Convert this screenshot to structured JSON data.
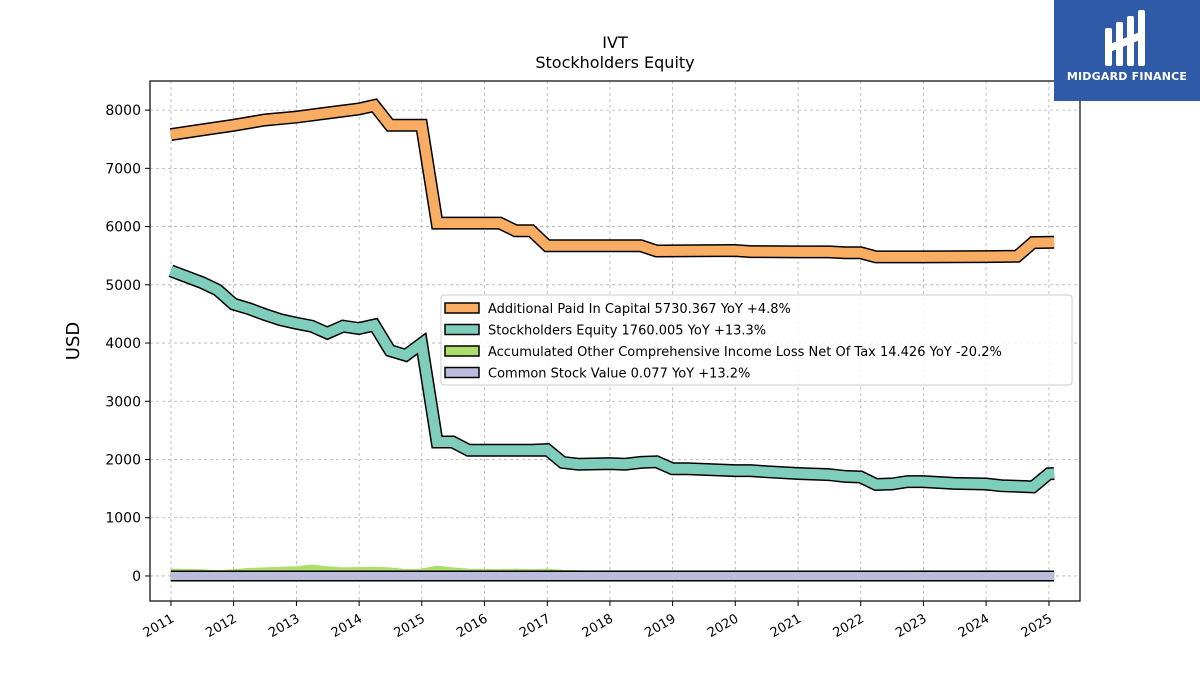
{
  "colors": {
    "apic": "#f9ad63",
    "se": "#7fcdbb",
    "aoci": "#addd6d",
    "csv": "#bcbddc",
    "logo_bg": "#2f5aa8"
  },
  "logo": {
    "text": "MIDGARD FINANCE",
    "icon": "midgard-logo-icon"
  },
  "chart_data": {
    "type": "line",
    "title": "IVT",
    "subtitle": "Stockholders  Equity",
    "xlabel": "",
    "ylabel": "USD",
    "xlim": [
      "2010-09-01",
      "2025-07-01"
    ],
    "ylim": [
      -430,
      8500
    ],
    "yticks": [
      0,
      1000,
      2000,
      3000,
      4000,
      5000,
      6000,
      7000,
      8000
    ],
    "xticks": [
      "2011",
      "2012",
      "2013",
      "2014",
      "2015",
      "2016",
      "2017",
      "2018",
      "2019",
      "2020",
      "2021",
      "2022",
      "2023",
      "2024",
      "2025"
    ],
    "grid": true,
    "legend_position": "center-right",
    "series": [
      {
        "name": "Additional Paid In Capital",
        "legend": "Additional Paid In Capital  5730.367 YoY +4.8%",
        "color_key": "apic",
        "points": [
          [
            "2010-12-31",
            7580
          ],
          [
            "2011-06-30",
            7660
          ],
          [
            "2011-12-31",
            7740
          ],
          [
            "2012-06-30",
            7830
          ],
          [
            "2012-12-31",
            7880
          ],
          [
            "2013-06-30",
            7950
          ],
          [
            "2013-12-31",
            8020
          ],
          [
            "2014-03-31",
            8080
          ],
          [
            "2014-06-30",
            7740
          ],
          [
            "2014-12-31",
            7740
          ],
          [
            "2015-03-31",
            6060
          ],
          [
            "2015-12-31",
            6060
          ],
          [
            "2016-03-31",
            6060
          ],
          [
            "2016-06-30",
            5930
          ],
          [
            "2016-09-30",
            5930
          ],
          [
            "2016-12-31",
            5670
          ],
          [
            "2017-12-31",
            5670
          ],
          [
            "2018-06-30",
            5670
          ],
          [
            "2018-09-30",
            5580
          ],
          [
            "2019-12-31",
            5590
          ],
          [
            "2020-03-31",
            5570
          ],
          [
            "2020-12-31",
            5565
          ],
          [
            "2021-06-30",
            5565
          ],
          [
            "2021-09-30",
            5550
          ],
          [
            "2021-12-31",
            5550
          ],
          [
            "2022-03-31",
            5480
          ],
          [
            "2022-12-31",
            5480
          ],
          [
            "2023-12-31",
            5485
          ],
          [
            "2024-06-30",
            5490
          ],
          [
            "2024-09-30",
            5725
          ],
          [
            "2025-01-31",
            5730
          ]
        ]
      },
      {
        "name": "Stockholders Equity",
        "legend": "Stockholders Equity  1760.005 YoY +13.3%",
        "color_key": "se",
        "points": [
          [
            "2010-12-31",
            5240
          ],
          [
            "2011-06-30",
            5040
          ],
          [
            "2011-09-30",
            4910
          ],
          [
            "2011-12-31",
            4670
          ],
          [
            "2012-03-31",
            4590
          ],
          [
            "2012-06-30",
            4490
          ],
          [
            "2012-09-30",
            4400
          ],
          [
            "2012-12-31",
            4340
          ],
          [
            "2013-03-31",
            4290
          ],
          [
            "2013-06-30",
            4170
          ],
          [
            "2013-09-30",
            4290
          ],
          [
            "2013-12-31",
            4250
          ],
          [
            "2014-03-31",
            4310
          ],
          [
            "2014-06-30",
            3870
          ],
          [
            "2014-09-30",
            3790
          ],
          [
            "2014-12-31",
            3990
          ],
          [
            "2015-03-31",
            2300
          ],
          [
            "2015-06-30",
            2300
          ],
          [
            "2015-09-30",
            2160
          ],
          [
            "2016-12-31",
            2160
          ],
          [
            "2016-09-30",
            2160
          ],
          [
            "2016-12-31",
            2170
          ],
          [
            "2017-03-31",
            1950
          ],
          [
            "2017-06-30",
            1920
          ],
          [
            "2017-12-31",
            1930
          ],
          [
            "2018-03-31",
            1920
          ],
          [
            "2018-06-30",
            1950
          ],
          [
            "2018-09-30",
            1960
          ],
          [
            "2018-12-31",
            1840
          ],
          [
            "2019-03-31",
            1840
          ],
          [
            "2019-06-30",
            1830
          ],
          [
            "2019-12-31",
            1810
          ],
          [
            "2020-03-31",
            1810
          ],
          [
            "2020-06-30",
            1790
          ],
          [
            "2020-12-31",
            1760
          ],
          [
            "2021-06-30",
            1740
          ],
          [
            "2021-09-30",
            1710
          ],
          [
            "2021-12-31",
            1700
          ],
          [
            "2022-03-31",
            1570
          ],
          [
            "2022-06-30",
            1580
          ],
          [
            "2022-09-30",
            1620
          ],
          [
            "2022-12-31",
            1620
          ],
          [
            "2023-06-30",
            1590
          ],
          [
            "2023-12-31",
            1580
          ],
          [
            "2024-03-31",
            1550
          ],
          [
            "2024-06-30",
            1540
          ],
          [
            "2024-09-30",
            1530
          ],
          [
            "2024-12-31",
            1755
          ],
          [
            "2025-01-31",
            1760
          ]
        ]
      },
      {
        "name": "Accumulated Other Comprehensive Income Loss Net Of Tax",
        "legend": "Accumulated Other Comprehensive Income Loss Net Of Tax  14.426 YoY -20.2%",
        "color_key": "aoci",
        "points": [
          [
            "2010-12-31",
            110
          ],
          [
            "2011-06-30",
            100
          ],
          [
            "2011-09-30",
            80
          ],
          [
            "2012-03-31",
            120
          ],
          [
            "2012-09-30",
            140
          ],
          [
            "2012-12-31",
            150
          ],
          [
            "2013-03-31",
            180
          ],
          [
            "2013-06-30",
            150
          ],
          [
            "2013-09-30",
            130
          ],
          [
            "2014-03-31",
            140
          ],
          [
            "2014-06-30",
            130
          ],
          [
            "2014-09-30",
            100
          ],
          [
            "2014-12-31",
            110
          ],
          [
            "2015-03-31",
            160
          ],
          [
            "2015-06-30",
            130
          ],
          [
            "2015-09-30",
            110
          ],
          [
            "2016-03-31",
            100
          ],
          [
            "2016-06-30",
            110
          ],
          [
            "2016-09-30",
            100
          ],
          [
            "2016-12-31",
            110
          ],
          [
            "2017-03-31",
            90
          ],
          [
            "2017-06-30",
            80
          ],
          [
            "2017-12-31",
            70
          ],
          [
            "2018-06-30",
            60
          ],
          [
            "2018-12-31",
            60
          ],
          [
            "2019-12-31",
            40
          ],
          [
            "2020-06-30",
            -10
          ],
          [
            "2020-12-31",
            -20
          ],
          [
            "2021-06-30",
            -20
          ],
          [
            "2021-12-31",
            -10
          ],
          [
            "2022-06-30",
            60
          ],
          [
            "2022-12-31",
            80
          ],
          [
            "2023-06-30",
            70
          ],
          [
            "2023-12-31",
            80
          ],
          [
            "2024-06-30",
            70
          ],
          [
            "2024-12-31",
            60
          ],
          [
            "2025-01-31",
            14.426
          ]
        ]
      },
      {
        "name": "Common Stock Value",
        "legend": "Common Stock Value  0.077 YoY +13.2%",
        "color_key": "csv",
        "points": [
          [
            "2010-12-31",
            0.07
          ],
          [
            "2015-12-31",
            0.07
          ],
          [
            "2020-12-31",
            0.07
          ],
          [
            "2025-01-31",
            0.077
          ]
        ]
      }
    ]
  }
}
